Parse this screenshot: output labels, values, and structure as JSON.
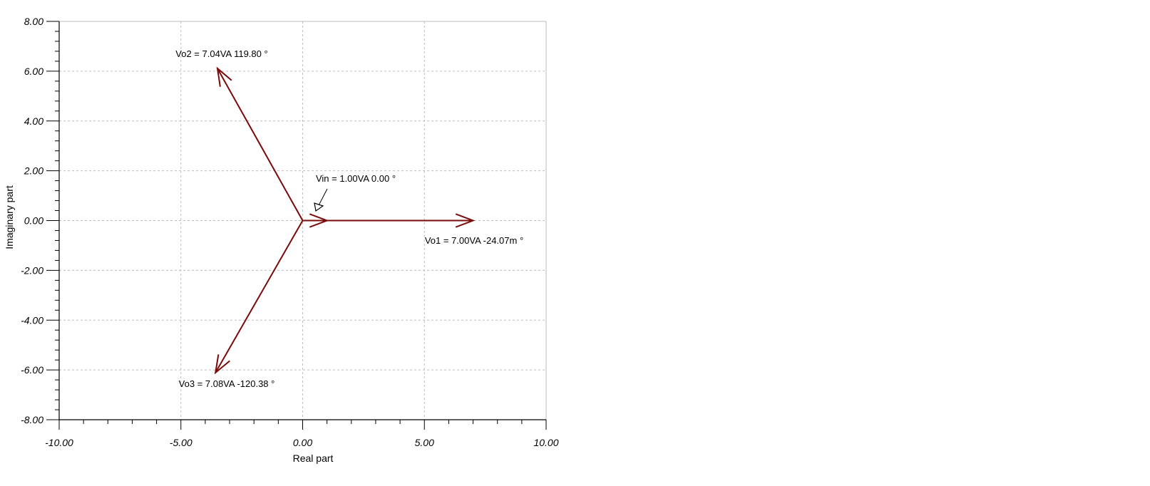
{
  "chart_data": {
    "type": "scatter",
    "title": "",
    "xlabel": "Real part",
    "ylabel": "Imaginary part",
    "xlim": [
      -10,
      10
    ],
    "ylim": [
      -8,
      8
    ],
    "grid": true,
    "colors": {
      "phasor": "#7a0a0a",
      "pointer": "#000000",
      "grid": "#bdbdbd"
    },
    "x_ticks": [
      "-10.00",
      "-5.00",
      "0.00",
      "5.00",
      "10.00"
    ],
    "y_ticks": [
      "8.00",
      "6.00",
      "4.00",
      "2.00",
      "0.00",
      "-2.00",
      "-4.00",
      "-6.00",
      "-8.00"
    ],
    "phasors": [
      {
        "label": "Vo2 = 7.04VA  119.80 °",
        "re": -3.5,
        "im": 6.11
      },
      {
        "label": "Vin = 1.00VA  0.00 °",
        "re": 1.0,
        "im": 0.0
      },
      {
        "label": "Vo1 = 7.00VA  -24.07m °",
        "re": 7.0,
        "im": 0.0
      },
      {
        "label": "Vo3 = 7.08VA  -120.38 °",
        "re": -3.58,
        "im": -6.11
      }
    ]
  }
}
